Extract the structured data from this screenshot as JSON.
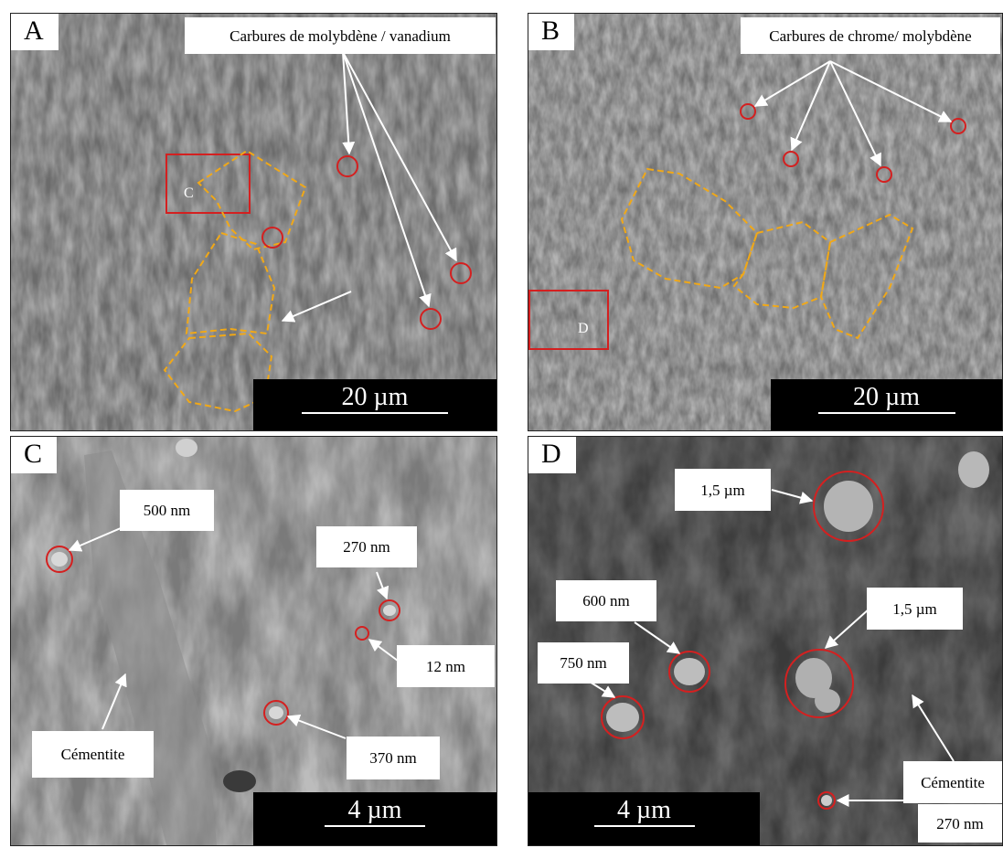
{
  "panels": {
    "a": {
      "label": "A",
      "scale": "20 µm",
      "caption": "Carbures de molybdène / vanadium",
      "box_label": "C"
    },
    "b": {
      "label": "B",
      "scale": "20 µm",
      "caption": "Carbures de chrome/ molybdène",
      "box_label": "D"
    },
    "c": {
      "label": "C",
      "scale": "4 µm",
      "callouts": {
        "c500": "500 nm",
        "c270": "270 nm",
        "c12": "12 nm",
        "c370": "370 nm",
        "cem": "Cémentite"
      }
    },
    "d": {
      "label": "D",
      "scale": "4 µm",
      "callouts": {
        "d15a": "1,5 µm",
        "d600": "600 nm",
        "d15b": "1,5 µm",
        "d750": "750 nm",
        "cem": "Cémentite",
        "d270": "270 nm"
      }
    }
  },
  "colors": {
    "marker": "#d42020",
    "boundary": "#f0a818",
    "arrow": "#ffffff",
    "micrograph": "#6e6e6e"
  }
}
